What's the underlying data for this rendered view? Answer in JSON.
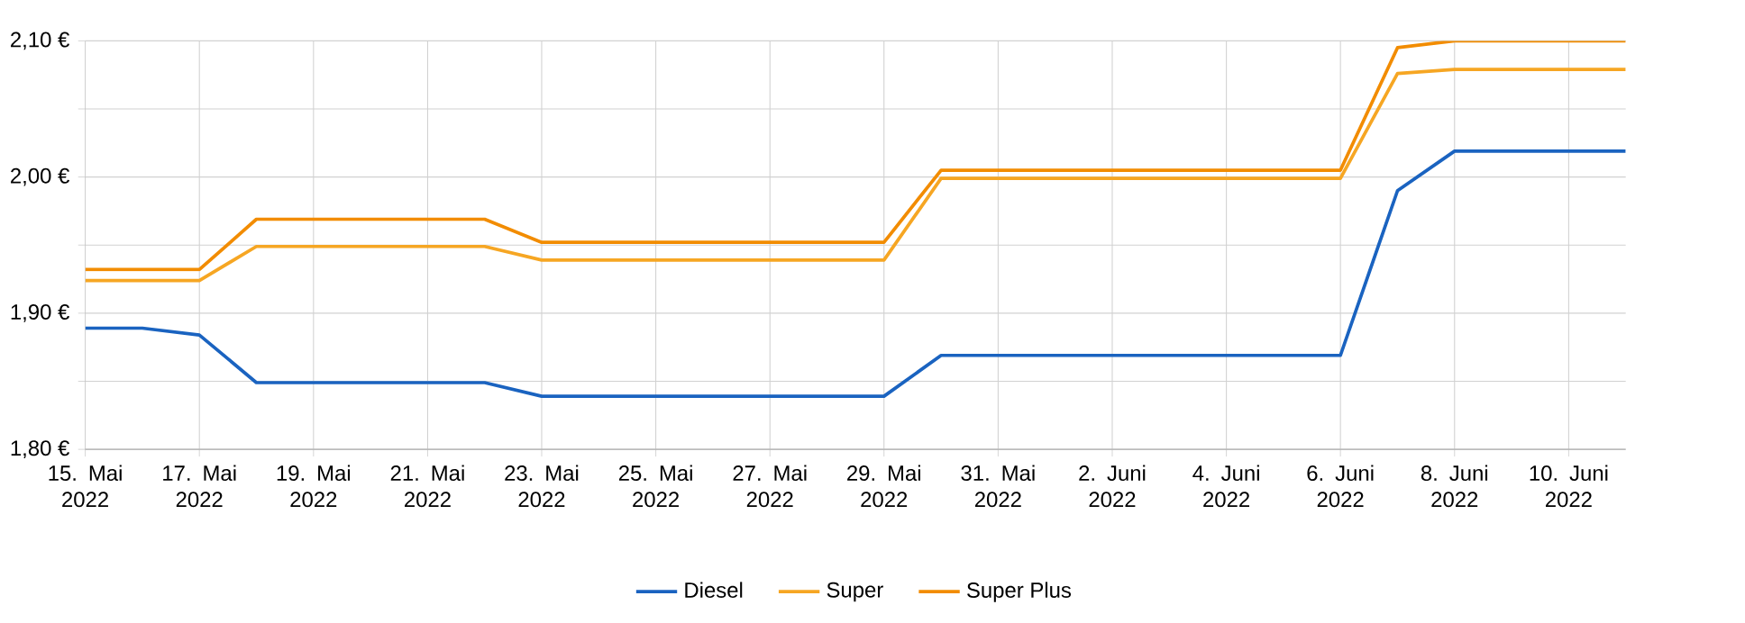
{
  "chart_data": {
    "type": "line",
    "x": [
      "2022-05-15",
      "2022-05-16",
      "2022-05-17",
      "2022-05-18",
      "2022-05-19",
      "2022-05-20",
      "2022-05-21",
      "2022-05-22",
      "2022-05-23",
      "2022-05-24",
      "2022-05-25",
      "2022-05-26",
      "2022-05-27",
      "2022-05-28",
      "2022-05-29",
      "2022-05-30",
      "2022-05-31",
      "2022-06-01",
      "2022-06-02",
      "2022-06-03",
      "2022-06-04",
      "2022-06-05",
      "2022-06-06",
      "2022-06-07",
      "2022-06-08",
      "2022-06-09",
      "2022-06-10",
      "2022-06-11"
    ],
    "series": [
      {
        "name": "Diesel",
        "color": "#1a63c0",
        "values": [
          1.889,
          1.889,
          1.884,
          1.849,
          1.849,
          1.849,
          1.849,
          1.849,
          1.839,
          1.839,
          1.839,
          1.839,
          1.839,
          1.839,
          1.839,
          1.869,
          1.869,
          1.869,
          1.869,
          1.869,
          1.869,
          1.869,
          1.869,
          1.99,
          2.019,
          2.019,
          2.019,
          2.019
        ]
      },
      {
        "name": "Super",
        "color": "#f6a623",
        "values": [
          1.924,
          1.924,
          1.924,
          1.949,
          1.949,
          1.949,
          1.949,
          1.949,
          1.939,
          1.939,
          1.939,
          1.939,
          1.939,
          1.939,
          1.939,
          1.999,
          1.999,
          1.999,
          1.999,
          1.999,
          1.999,
          1.999,
          1.999,
          2.076,
          2.079,
          2.079,
          2.079,
          2.079
        ]
      },
      {
        "name": "Super Plus",
        "color": "#f28c00",
        "values": [
          1.932,
          1.932,
          1.932,
          1.969,
          1.969,
          1.969,
          1.969,
          1.969,
          1.952,
          1.952,
          1.952,
          1.952,
          1.952,
          1.952,
          1.952,
          2.005,
          2.005,
          2.005,
          2.005,
          2.005,
          2.005,
          2.005,
          2.005,
          2.095,
          2.1,
          2.1,
          2.1,
          2.1
        ]
      }
    ],
    "xlim": [
      "2022-05-15",
      "2022-06-11"
    ],
    "xticks": [
      {
        "value": "2022-05-15",
        "label": "15. Mai 2022"
      },
      {
        "value": "2022-05-17",
        "label": "17. Mai 2022"
      },
      {
        "value": "2022-05-19",
        "label": "19. Mai 2022"
      },
      {
        "value": "2022-05-21",
        "label": "21. Mai 2022"
      },
      {
        "value": "2022-05-23",
        "label": "23. Mai 2022"
      },
      {
        "value": "2022-05-25",
        "label": "25. Mai 2022"
      },
      {
        "value": "2022-05-27",
        "label": "27. Mai 2022"
      },
      {
        "value": "2022-05-29",
        "label": "29. Mai 2022"
      },
      {
        "value": "2022-05-31",
        "label": "31. Mai 2022"
      },
      {
        "value": "2022-06-02",
        "label": "2. Juni 2022"
      },
      {
        "value": "2022-06-04",
        "label": "4. Juni 2022"
      },
      {
        "value": "2022-06-06",
        "label": "6. Juni 2022"
      },
      {
        "value": "2022-06-08",
        "label": "8. Juni 2022"
      },
      {
        "value": "2022-06-10",
        "label": "10. Juni 2022"
      }
    ],
    "ylim": [
      1.8,
      2.1
    ],
    "yticks": [
      {
        "value": 1.8,
        "label": "1,80 €"
      },
      {
        "value": 1.85,
        "label": null
      },
      {
        "value": 1.9,
        "label": "1,90 €"
      },
      {
        "value": 1.95,
        "label": null
      },
      {
        "value": 2.0,
        "label": "2,00 €"
      },
      {
        "value": 2.05,
        "label": null
      },
      {
        "value": 2.1,
        "label": "2,10 €"
      }
    ],
    "grid": true,
    "legend": "bottom",
    "marker": "none",
    "line_style": "solid"
  }
}
